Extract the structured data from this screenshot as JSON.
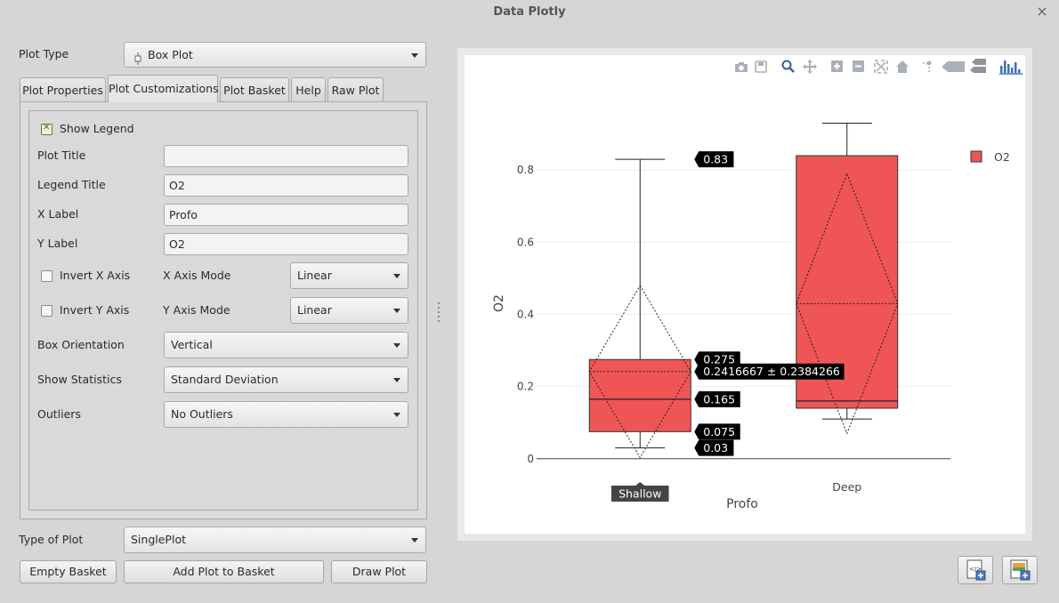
{
  "window": {
    "title": "Data Plotly",
    "close_glyph": "×"
  },
  "plot_type": {
    "label": "Plot Type",
    "value": "Box Plot"
  },
  "tabs": [
    {
      "label": "Plot Properties"
    },
    {
      "label": "Plot Customizations"
    },
    {
      "label": "Plot Basket"
    },
    {
      "label": "Help"
    },
    {
      "label": "Raw Plot"
    }
  ],
  "customizations": {
    "show_legend": {
      "label": "Show Legend",
      "checked": true
    },
    "plot_title": {
      "label": "Plot Title",
      "value": ""
    },
    "legend_title": {
      "label": "Legend Title",
      "value": "O2"
    },
    "x_label": {
      "label": "X Label",
      "value": "Profo"
    },
    "y_label": {
      "label": "Y Label",
      "value": "O2"
    },
    "invert_x": {
      "label": "Invert X Axis",
      "checked": false
    },
    "invert_y": {
      "label": "Invert Y Axis",
      "checked": false
    },
    "x_axis_mode": {
      "label": "X Axis Mode",
      "value": "Linear"
    },
    "y_axis_mode": {
      "label": "Y Axis Mode",
      "value": "Linear"
    },
    "box_orientation": {
      "label": "Box Orientation",
      "value": "Vertical"
    },
    "show_statistics": {
      "label": "Show Statistics",
      "value": "Standard Deviation"
    },
    "outliers": {
      "label": "Outliers",
      "value": "No Outliers"
    }
  },
  "type_of_plot": {
    "label": "Type of Plot",
    "value": "SinglePlot"
  },
  "buttons": {
    "empty_basket": "Empty Basket",
    "add_plot": "Add Plot to Basket",
    "draw_plot": "Draw Plot"
  },
  "modebar_icons": [
    "camera-icon",
    "save-icon",
    "zoom-icon",
    "pan-icon",
    "zoom-in-icon",
    "zoom-out-icon",
    "autoscale-icon",
    "reset-axes-icon",
    "spike-lines-icon",
    "hover-closest-icon",
    "hover-compare-icon",
    "plotly-logo-icon"
  ],
  "colors": {
    "box_fill": "#ef5555",
    "box_line": "#333333",
    "modebar_active": "#3e6fb8"
  },
  "chart_data": {
    "type": "box",
    "categories": [
      "Shallow",
      "Deep"
    ],
    "xlabel": "Profo",
    "ylabel": "O2",
    "ylim": [
      -0.04,
      1.02
    ],
    "yticks": [
      0,
      0.2,
      0.4,
      0.6,
      0.8
    ],
    "ytick_labels": [
      "0",
      "0.2",
      "0.4",
      "0.6",
      "0.8"
    ],
    "grid": true,
    "legend": {
      "position": "top-right",
      "entries": [
        "O2"
      ]
    },
    "series": [
      {
        "name": "O2",
        "boxes": [
          {
            "category": "Shallow",
            "min": 0.03,
            "q1": 0.075,
            "median": 0.165,
            "q3": 0.275,
            "max": 0.83,
            "mean": 0.2416667,
            "sd": 0.2384266
          },
          {
            "category": "Deep",
            "min": 0.11,
            "q1": 0.14,
            "median": 0.16,
            "q3": 0.84,
            "max": 0.93,
            "mean": 0.43,
            "sd": 0.36
          }
        ]
      }
    ],
    "hover_labels": [
      {
        "text": "0.83",
        "y": 0.83
      },
      {
        "text": "0.275",
        "y": 0.275
      },
      {
        "text": "0.2416667 ± 0.2384266",
        "y": 0.2416667
      },
      {
        "text": "0.165",
        "y": 0.165
      },
      {
        "text": "0.075",
        "y": 0.075
      },
      {
        "text": "0.03",
        "y": 0.03
      }
    ],
    "hover_category_label": "Shallow"
  },
  "bottom_right_buttons": [
    "export-html-icon",
    "export-image-icon"
  ]
}
